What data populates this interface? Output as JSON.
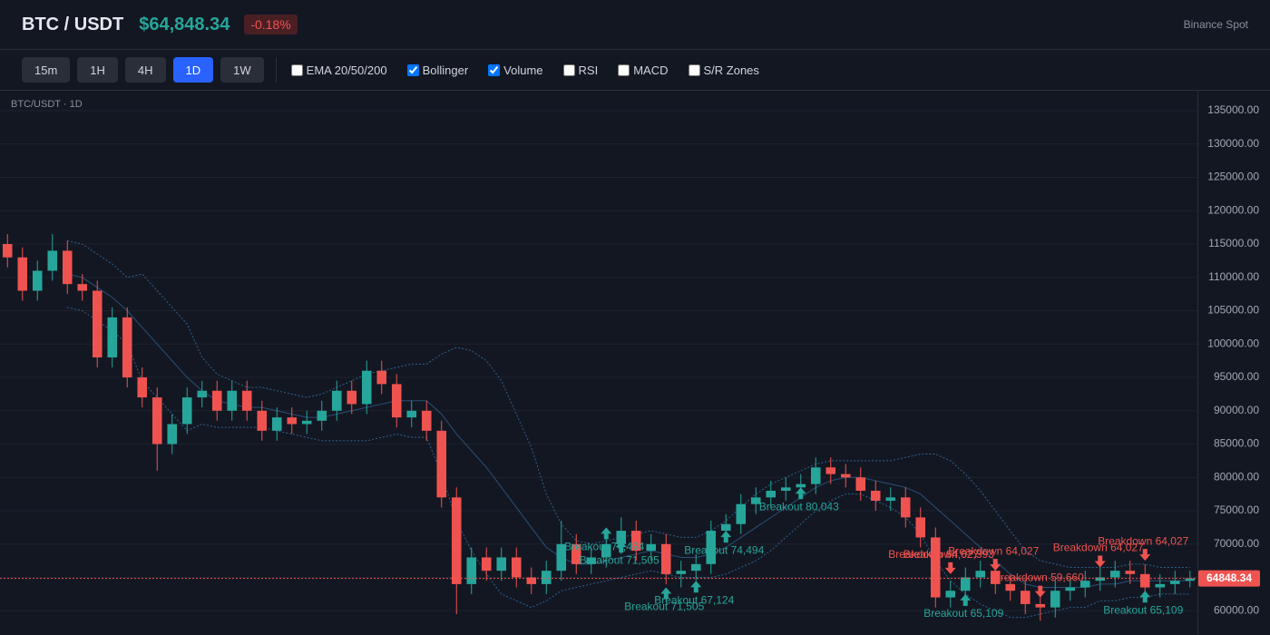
{
  "header": {
    "symbol": "BTC / USDT",
    "price": "$64,848.34",
    "change": "-0.18%",
    "exchange": "Binance Spot"
  },
  "toolbar": {
    "timeframes": [
      {
        "label": "15m",
        "active": false
      },
      {
        "label": "1H",
        "active": false
      },
      {
        "label": "4H",
        "active": false
      },
      {
        "label": "1D",
        "active": true
      },
      {
        "label": "1W",
        "active": false
      }
    ],
    "indicators": [
      {
        "label": "EMA 20/50/200",
        "checked": false
      },
      {
        "label": "Bollinger",
        "checked": true
      },
      {
        "label": "Volume",
        "checked": true
      },
      {
        "label": "RSI",
        "checked": false
      },
      {
        "label": "MACD",
        "checked": false
      },
      {
        "label": "S/R Zones",
        "checked": false
      }
    ]
  },
  "chart_data": {
    "type": "candlestick",
    "label": "BTC/USDT · 1D",
    "open": [
      115000,
      113000,
      108000,
      111000,
      114000,
      109000,
      108000,
      98000,
      104000,
      95000,
      92000,
      85000,
      88000,
      92000,
      93000,
      90000,
      93000,
      90000,
      87000,
      89000,
      88000,
      88500,
      90000,
      93000,
      91000,
      96000,
      94000,
      89000,
      90000,
      87000,
      77000,
      64000,
      68000,
      66000,
      68000,
      65000,
      64000,
      66000,
      70000,
      67000,
      68000,
      70000,
      72000,
      69000,
      70000,
      65500,
      66000,
      67000,
      72000,
      73000,
      76000,
      77000,
      78000,
      78500,
      79000,
      81500,
      80500,
      80000,
      78000,
      76500,
      77000,
      74000,
      71000,
      62000,
      63000,
      65000,
      66000,
      64000,
      63000,
      61000,
      60500,
      63000,
      63500,
      64500,
      65000,
      66000,
      65500,
      63500,
      64000,
      64500
    ],
    "high": [
      116500,
      114500,
      112500,
      116500,
      115500,
      110500,
      109500,
      105500,
      105500,
      96500,
      93500,
      89500,
      93500,
      94500,
      94500,
      94500,
      94500,
      91500,
      90500,
      90500,
      90000,
      91500,
      94500,
      94500,
      97500,
      97500,
      95500,
      91500,
      91500,
      88500,
      78500,
      69500,
      69500,
      69500,
      69500,
      66500,
      67500,
      73500,
      71500,
      69500,
      71500,
      74000,
      73500,
      71500,
      71500,
      67500,
      68500,
      73500,
      74500,
      77500,
      78500,
      79500,
      80000,
      80500,
      83000,
      83000,
      82000,
      81500,
      79500,
      78500,
      78500,
      75500,
      72500,
      64500,
      66500,
      67500,
      67500,
      65500,
      64500,
      62500,
      64500,
      65000,
      66000,
      66500,
      67500,
      67500,
      67000,
      65500,
      66000,
      66000
    ],
    "low": [
      111500,
      106500,
      106500,
      109500,
      107500,
      106500,
      96500,
      96500,
      93500,
      90500,
      81000,
      83500,
      86500,
      90500,
      88500,
      88500,
      88500,
      85500,
      85500,
      86500,
      86500,
      87000,
      88500,
      89500,
      89500,
      92500,
      87500,
      87500,
      85500,
      75500,
      59500,
      62500,
      64500,
      64500,
      63500,
      62500,
      62500,
      64500,
      65500,
      65500,
      66500,
      68500,
      67500,
      67500,
      64000,
      63500,
      64500,
      65500,
      70500,
      71500,
      74500,
      75500,
      76500,
      77000,
      77500,
      79000,
      78500,
      76500,
      75000,
      75000,
      72500,
      69500,
      60500,
      60500,
      61500,
      63500,
      62500,
      61500,
      59500,
      58500,
      59000,
      61500,
      62000,
      63000,
      63500,
      64000,
      62000,
      62000,
      62500,
      63500
    ],
    "close": [
      113000,
      108000,
      111000,
      114000,
      109000,
      108000,
      98000,
      104000,
      95000,
      92000,
      85000,
      88000,
      92000,
      93000,
      90000,
      93000,
      90000,
      87000,
      89000,
      88000,
      88500,
      90000,
      93000,
      91000,
      96000,
      94000,
      89000,
      90000,
      87000,
      77000,
      64000,
      68000,
      66000,
      68000,
      65000,
      64000,
      66000,
      70000,
      67000,
      68000,
      70000,
      72000,
      69000,
      70000,
      65500,
      66000,
      67000,
      72000,
      73000,
      76000,
      77000,
      78000,
      78500,
      79000,
      81500,
      80500,
      80000,
      78000,
      76500,
      77000,
      74000,
      71000,
      62000,
      63000,
      65000,
      66000,
      64000,
      63000,
      61000,
      60500,
      63000,
      63500,
      64500,
      65000,
      66000,
      65500,
      63500,
      64000,
      64500,
      64848.34
    ],
    "bollinger": {
      "upper": [
        null,
        null,
        null,
        null,
        115500,
        115000,
        113500,
        112000,
        110000,
        110500,
        108000,
        105500,
        103000,
        98000,
        95500,
        94500,
        93500,
        93500,
        93000,
        92500,
        92000,
        92500,
        93500,
        94500,
        95500,
        96000,
        96500,
        97000,
        97000,
        98500,
        99500,
        99000,
        97500,
        94500,
        89500,
        84500,
        77500,
        73000,
        70500,
        70000,
        70500,
        71000,
        71500,
        72000,
        71500,
        71000,
        71000,
        72000,
        73500,
        75500,
        77500,
        79000,
        80000,
        81000,
        82000,
        82500,
        82500,
        82500,
        82500,
        82500,
        83000,
        83500,
        83500,
        82500,
        80500,
        78000,
        75000,
        72000,
        69000,
        67500,
        67000,
        66500,
        66500,
        66500,
        66500,
        67000,
        67000,
        66500,
        66500,
        66500
      ],
      "middle": [
        null,
        null,
        null,
        null,
        110500,
        110000,
        108500,
        107000,
        105000,
        102500,
        100000,
        97500,
        95000,
        93000,
        91500,
        91000,
        90500,
        90500,
        90000,
        89500,
        89000,
        89000,
        89500,
        90000,
        90500,
        91000,
        91500,
        91500,
        91500,
        89500,
        86500,
        84000,
        81500,
        78500,
        75500,
        72500,
        69500,
        68000,
        67000,
        67000,
        67500,
        68000,
        68500,
        69000,
        68500,
        68000,
        68000,
        68500,
        69500,
        71000,
        72500,
        74000,
        75500,
        77000,
        78500,
        79500,
        80000,
        80000,
        79500,
        79000,
        78500,
        77500,
        75500,
        73500,
        71500,
        69500,
        67500,
        65500,
        64000,
        63500,
        63500,
        63500,
        63500,
        64000,
        64000,
        64500,
        64500,
        64500,
        64500,
        64500
      ],
      "lower": [
        null,
        null,
        null,
        null,
        105500,
        105000,
        103500,
        102000,
        100000,
        94500,
        92000,
        89500,
        87000,
        88000,
        87500,
        87500,
        87500,
        87500,
        87000,
        86500,
        86000,
        85500,
        85500,
        85500,
        85500,
        86000,
        86500,
        86000,
        86000,
        80500,
        73500,
        69000,
        65500,
        62500,
        61500,
        60500,
        61500,
        63000,
        63500,
        64000,
        64500,
        65000,
        65500,
        66000,
        65500,
        65000,
        65000,
        65000,
        65500,
        66500,
        67500,
        69000,
        71000,
        73000,
        75000,
        76500,
        77500,
        77500,
        76500,
        75500,
        74000,
        71500,
        67500,
        64500,
        62500,
        61000,
        60000,
        59000,
        59000,
        59500,
        60000,
        60500,
        60500,
        61500,
        61500,
        62000,
        62000,
        62500,
        62500,
        62500
      ]
    },
    "last_price": 64848.34,
    "ylim": [
      56500,
      138000
    ],
    "yticks": [
      {
        "value": 60000,
        "label": "60000.00"
      },
      {
        "value": 65000,
        "label": "65000.00"
      },
      {
        "value": 70000,
        "label": "70000.00"
      },
      {
        "value": 75000,
        "label": "75000.00"
      },
      {
        "value": 80000,
        "label": "80000.00"
      },
      {
        "value": 85000,
        "label": "85000.00"
      },
      {
        "value": 90000,
        "label": "90000.00"
      },
      {
        "value": 95000,
        "label": "95000.00"
      },
      {
        "value": 100000,
        "label": "100000.00"
      },
      {
        "value": 105000,
        "label": "105000.00"
      },
      {
        "value": 110000,
        "label": "110000.00"
      },
      {
        "value": 115000,
        "label": "115000.00"
      },
      {
        "value": 120000,
        "label": "120000.00"
      },
      {
        "value": 125000,
        "label": "125000.00"
      },
      {
        "value": 130000,
        "label": "130000.00"
      },
      {
        "value": 135000,
        "label": "135000.00"
      }
    ],
    "grid": true,
    "up_color": "#26a69a",
    "down_color": "#ef5350",
    "band_color": "#2f6a9a",
    "signals": [
      {
        "kind": "up",
        "index": 40,
        "price": 72500,
        "text": "Breakout 74,494"
      },
      {
        "kind": "up",
        "index": 41,
        "price": 70500,
        "text": "Breakout 71,505"
      },
      {
        "kind": "up",
        "index": 44,
        "price": 63500,
        "text": "Breakout 71,505"
      },
      {
        "kind": "up",
        "index": 46,
        "price": 64500,
        "text": "Breakout 67,124"
      },
      {
        "kind": "up",
        "index": 48,
        "price": 72000,
        "text": "Breakout 74,494"
      },
      {
        "kind": "up",
        "index": 53,
        "price": 78500,
        "text": "Breakout 80,043"
      },
      {
        "kind": "down",
        "index": 62,
        "price": 65500,
        "text": "Breakdown 64,027"
      },
      {
        "kind": "down",
        "index": 63,
        "price": 65500,
        "text": "Breakdown 62,393"
      },
      {
        "kind": "down",
        "index": 66,
        "price": 66000,
        "text": "Breakdown 64,027"
      },
      {
        "kind": "up",
        "index": 64,
        "price": 62500,
        "text": "Breakout 65,109"
      },
      {
        "kind": "down",
        "index": 69,
        "price": 62000,
        "text": "Breakdown 59,660"
      },
      {
        "kind": "down",
        "index": 73,
        "price": 66500,
        "text": "Breakdown 64,027"
      },
      {
        "kind": "down",
        "index": 76,
        "price": 67500,
        "text": "Breakdown 64,027"
      },
      {
        "kind": "up",
        "index": 76,
        "price": 63000,
        "text": "Breakout 65,109"
      }
    ]
  }
}
